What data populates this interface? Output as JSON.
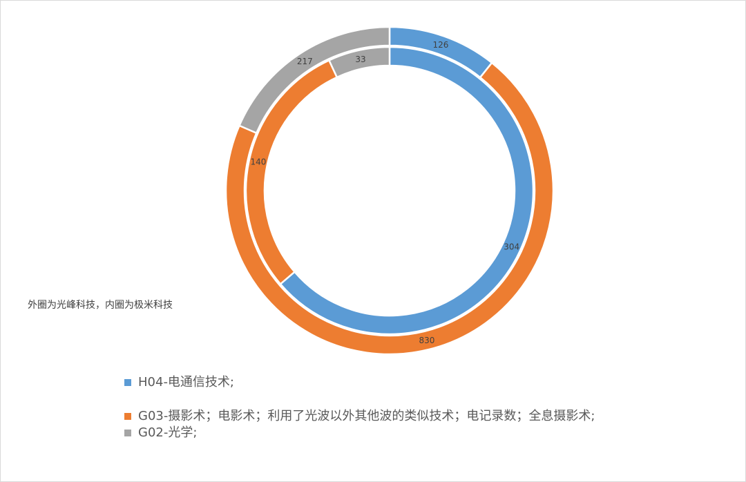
{
  "chart_data": {
    "type": "pie",
    "annotation": "外圈为光峰科技，内圈为极米科技",
    "categories": [
      "H04-电通信技术;",
      "G03-摄影术；电影术；利用了光波以外其他波的类似技术；电记录数；全息摄影术;",
      "G02-光学;"
    ],
    "colors": [
      "#5B9BD5",
      "#ED7D31",
      "#A5A5A5"
    ],
    "series": [
      {
        "ring": "outer",
        "values": [
          126,
          830,
          217
        ]
      },
      {
        "ring": "inner",
        "values": [
          304,
          140,
          33
        ]
      }
    ]
  }
}
